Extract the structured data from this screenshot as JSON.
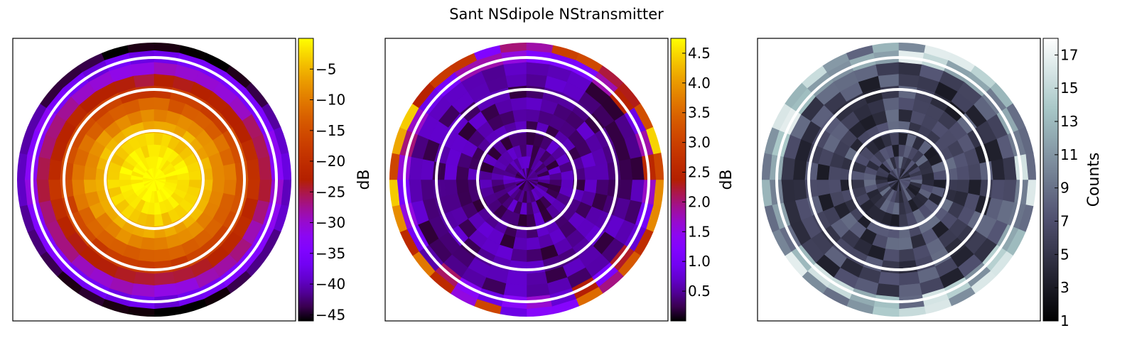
{
  "figure": {
    "title": "Sant NSdipole NStransmitter"
  },
  "chart_data": [
    {
      "type": "heatmap",
      "panel": "beam-model",
      "projection": "polar sky map (zenith at center)",
      "colormap": "gnuplot",
      "colorbar": {
        "label": "dB",
        "range": [
          -46,
          0
        ],
        "ticks": [
          -5,
          -10,
          -15,
          -20,
          -25,
          -30,
          -35,
          -40,
          -45
        ],
        "tick_labels": [
          "−5",
          "−10",
          "−15",
          "−20",
          "−25",
          "−30",
          "−35",
          "−40",
          "−45"
        ]
      },
      "elevation_circles_deg": [
        60,
        40,
        20
      ],
      "trend": "0 dB at zenith falling to about -45 dB at the horizon"
    },
    {
      "type": "heatmap",
      "panel": "residual",
      "projection": "polar sky map (zenith at center)",
      "colormap": "gnuplot",
      "colorbar": {
        "label": "dB",
        "range": [
          0,
          4.75
        ],
        "ticks": [
          0.5,
          1.0,
          1.5,
          2.0,
          2.5,
          3.0,
          3.5,
          4.0,
          4.5
        ],
        "tick_labels": [
          "0.5",
          "1.0",
          "1.5",
          "2.0",
          "2.5",
          "3.0",
          "3.5",
          "4.0",
          "4.5"
        ]
      },
      "elevation_circles_deg": [
        60,
        40,
        20
      ],
      "trend": "near 0 dB over most of the sky, rising to 2-4.5 dB near the horizon"
    },
    {
      "type": "heatmap",
      "panel": "counts",
      "projection": "polar sky map (zenith at center)",
      "colormap": "bone",
      "colorbar": {
        "label": "Counts",
        "range": [
          1,
          18
        ],
        "ticks": [
          1,
          3,
          5,
          7,
          9,
          11,
          13,
          15,
          17
        ],
        "tick_labels": [
          "1",
          "3",
          "5",
          "7",
          "9",
          "11",
          "13",
          "15",
          "17"
        ]
      },
      "elevation_circles_deg": [
        60,
        40,
        20
      ],
      "trend": "mostly 3-9 counts, higher (13-18) at the horizon edge"
    }
  ]
}
